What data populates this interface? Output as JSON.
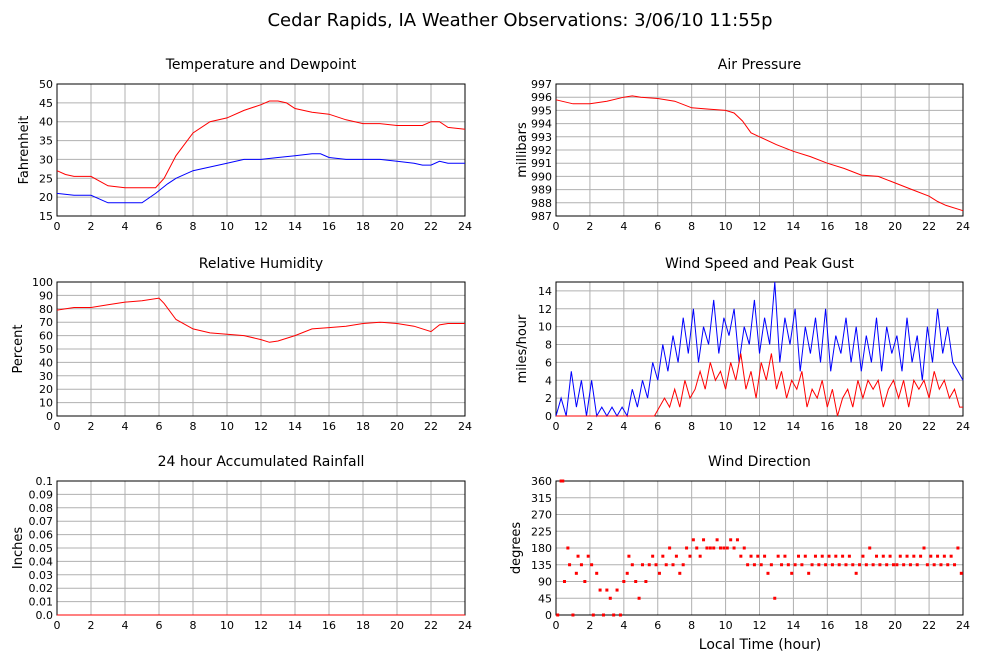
{
  "page_title": "Cedar Rapids, IA Weather Observations: 3/06/10 11:55p",
  "global_xlabel": "Local Time (hour)",
  "colors": {
    "red": "#ff0000",
    "blue": "#0000ff",
    "grid": "#b0b0b0"
  },
  "chart_data": [
    {
      "type": "line",
      "title": "Temperature and Dewpoint",
      "xlabel": "",
      "ylabel": "Fahrenheit",
      "xlim": [
        0,
        24
      ],
      "ylim": [
        15,
        50
      ],
      "xticks": [
        0,
        2,
        4,
        6,
        8,
        10,
        12,
        14,
        16,
        18,
        20,
        22,
        24
      ],
      "yticks": [
        15,
        20,
        25,
        30,
        35,
        40,
        45,
        50
      ],
      "grid": true,
      "series": [
        {
          "color": "#ff0000",
          "x": [
            0,
            0.5,
            1,
            2,
            3,
            4,
            5,
            5.8,
            6.3,
            7,
            8,
            9,
            10,
            11,
            12,
            12.5,
            13,
            13.5,
            14,
            15,
            16,
            17,
            18,
            19,
            20,
            21,
            21.5,
            22,
            22.5,
            23,
            24
          ],
          "values": [
            27,
            26,
            25.5,
            25.5,
            23,
            22.5,
            22.5,
            22.5,
            25,
            31,
            37,
            40,
            41,
            43,
            44.5,
            45.5,
            45.5,
            45,
            43.5,
            42.5,
            42,
            40.5,
            39.5,
            39.5,
            39,
            39,
            39,
            40,
            40,
            38.5,
            38
          ]
        },
        {
          "color": "#0000ff",
          "x": [
            0,
            1,
            2,
            3,
            4,
            5,
            5.8,
            6.5,
            7,
            8,
            9,
            10,
            11,
            12,
            13,
            14,
            15,
            15.5,
            16,
            17,
            18,
            19,
            20,
            21,
            21.5,
            22,
            22.5,
            23,
            24
          ],
          "values": [
            21,
            20.5,
            20.5,
            18.5,
            18.5,
            18.5,
            21,
            23.5,
            25,
            27,
            28,
            29,
            30,
            30,
            30.5,
            31,
            31.5,
            31.5,
            30.5,
            30,
            30,
            30,
            29.5,
            29,
            28.5,
            28.5,
            29.5,
            29,
            29
          ]
        }
      ]
    },
    {
      "type": "line",
      "title": "Air Pressure",
      "xlabel": "",
      "ylabel": "millibars",
      "xlim": [
        0,
        24
      ],
      "ylim": [
        987,
        997
      ],
      "xticks": [
        0,
        2,
        4,
        6,
        8,
        10,
        12,
        14,
        16,
        18,
        20,
        22,
        24
      ],
      "yticks": [
        987,
        988,
        989,
        990,
        991,
        992,
        993,
        994,
        995,
        996,
        997
      ],
      "grid": true,
      "series": [
        {
          "color": "#ff0000",
          "x": [
            0,
            1,
            2,
            3,
            4,
            4.5,
            5,
            6,
            7,
            8,
            9,
            10,
            10.5,
            11,
            11.5,
            12,
            13,
            14,
            15,
            16,
            17,
            18,
            19,
            20,
            21,
            22,
            22.5,
            23,
            24
          ],
          "values": [
            995.8,
            995.5,
            995.5,
            995.7,
            996,
            996.1,
            996,
            995.9,
            995.7,
            995.2,
            995.1,
            995,
            994.8,
            994.2,
            993.3,
            993,
            992.4,
            991.9,
            991.5,
            991,
            990.6,
            990.1,
            990,
            989.5,
            989,
            988.5,
            988.1,
            987.8,
            987.4
          ]
        }
      ]
    },
    {
      "type": "line",
      "title": "Relative Humidity",
      "xlabel": "",
      "ylabel": "Percent",
      "xlim": [
        0,
        24
      ],
      "ylim": [
        0,
        100
      ],
      "xticks": [
        0,
        2,
        4,
        6,
        8,
        10,
        12,
        14,
        16,
        18,
        20,
        22,
        24
      ],
      "yticks": [
        0,
        10,
        20,
        30,
        40,
        50,
        60,
        70,
        80,
        90,
        100
      ],
      "grid": true,
      "series": [
        {
          "color": "#ff0000",
          "x": [
            0,
            1,
            2,
            3,
            4,
            5,
            6,
            6.3,
            7,
            8,
            9,
            10,
            11,
            12,
            12.5,
            13,
            14,
            15,
            16,
            17,
            18,
            19,
            20,
            21,
            22,
            22.5,
            23,
            24
          ],
          "values": [
            79,
            81,
            81,
            83,
            85,
            86,
            88,
            84,
            72,
            65,
            62,
            61,
            60,
            57,
            55,
            56,
            60,
            65,
            66,
            67,
            69,
            70,
            69,
            67,
            63,
            68,
            69,
            69
          ]
        }
      ]
    },
    {
      "type": "line",
      "title": "Wind Speed and Peak Gust",
      "xlabel": "",
      "ylabel": "miles/hour",
      "xlim": [
        0,
        24
      ],
      "ylim": [
        0,
        15
      ],
      "xticks": [
        0,
        2,
        4,
        6,
        8,
        10,
        12,
        14,
        16,
        18,
        20,
        22,
        24
      ],
      "yticks": [
        0,
        2,
        4,
        6,
        8,
        10,
        12,
        14
      ],
      "grid": true,
      "series": [
        {
          "color": "#0000ff",
          "x": [
            0,
            0.3,
            0.6,
            0.9,
            1.2,
            1.5,
            1.8,
            2.1,
            2.4,
            2.7,
            3.0,
            3.3,
            3.6,
            3.9,
            4.2,
            4.5,
            4.8,
            5.1,
            5.4,
            5.7,
            6.0,
            6.3,
            6.6,
            6.9,
            7.2,
            7.5,
            7.8,
            8.1,
            8.4,
            8.7,
            9.0,
            9.3,
            9.6,
            9.9,
            10.2,
            10.5,
            10.8,
            11.1,
            11.4,
            11.7,
            12.0,
            12.3,
            12.6,
            12.9,
            13.2,
            13.5,
            13.8,
            14.1,
            14.4,
            14.7,
            15.0,
            15.3,
            15.6,
            15.9,
            16.2,
            16.5,
            16.8,
            17.1,
            17.4,
            17.7,
            18.0,
            18.3,
            18.6,
            18.9,
            19.2,
            19.5,
            19.8,
            20.1,
            20.4,
            20.7,
            21.0,
            21.3,
            21.6,
            21.9,
            22.2,
            22.5,
            22.8,
            23.1,
            23.4,
            23.7,
            24.0
          ],
          "values": [
            0,
            2,
            0,
            5,
            1,
            4,
            0,
            4,
            0,
            1,
            0,
            1,
            0,
            1,
            0,
            3,
            1,
            4,
            2,
            6,
            4,
            8,
            5,
            9,
            6,
            11,
            7,
            12,
            6,
            10,
            8,
            13,
            7,
            11,
            9,
            12,
            6,
            10,
            8,
            13,
            7,
            11,
            8,
            15,
            6,
            11,
            8,
            12,
            5,
            10,
            7,
            11,
            6,
            12,
            5,
            9,
            7,
            11,
            6,
            10,
            5,
            9,
            6,
            11,
            5,
            10,
            7,
            9,
            5,
            11,
            6,
            9,
            4,
            10,
            6,
            12,
            7,
            10,
            6,
            5,
            4
          ]
        },
        {
          "color": "#ff0000",
          "x": [
            0,
            0.5,
            1,
            1.5,
            2,
            2.5,
            3,
            3.5,
            4,
            4.5,
            5,
            5.5,
            5.8,
            6.1,
            6.4,
            6.7,
            7.0,
            7.3,
            7.6,
            7.9,
            8.2,
            8.5,
            8.8,
            9.1,
            9.4,
            9.7,
            10.0,
            10.3,
            10.6,
            10.9,
            11.2,
            11.5,
            11.8,
            12.1,
            12.4,
            12.7,
            13.0,
            13.3,
            13.6,
            13.9,
            14.2,
            14.5,
            14.8,
            15.1,
            15.4,
            15.7,
            16.0,
            16.3,
            16.6,
            16.9,
            17.2,
            17.5,
            17.8,
            18.1,
            18.4,
            18.7,
            19.0,
            19.3,
            19.6,
            19.9,
            20.2,
            20.5,
            20.8,
            21.1,
            21.4,
            21.7,
            22.0,
            22.3,
            22.6,
            22.9,
            23.2,
            23.5,
            23.8,
            24.0
          ],
          "values": [
            0,
            0,
            0,
            0,
            0,
            0,
            0,
            0,
            0,
            0,
            0,
            0,
            0,
            1,
            2,
            1,
            3,
            1,
            4,
            2,
            3,
            5,
            3,
            6,
            4,
            5,
            3,
            6,
            4,
            7,
            3,
            5,
            2,
            6,
            4,
            7,
            3,
            5,
            2,
            4,
            3,
            5,
            1,
            3,
            2,
            4,
            1,
            3,
            0,
            2,
            3,
            1,
            4,
            2,
            4,
            3,
            4,
            1,
            3,
            4,
            2,
            4,
            1,
            4,
            3,
            4,
            2,
            5,
            3,
            4,
            2,
            3,
            1,
            1
          ]
        }
      ]
    },
    {
      "type": "line",
      "title": "24 hour Accumulated Rainfall",
      "xlabel": "",
      "ylabel": "Inches",
      "xlim": [
        0,
        24
      ],
      "ylim": [
        0,
        0.1
      ],
      "xticks": [
        0,
        2,
        4,
        6,
        8,
        10,
        12,
        14,
        16,
        18,
        20,
        22,
        24
      ],
      "yticks": [
        0.0,
        0.01,
        0.02,
        0.03,
        0.04,
        0.05,
        0.06,
        0.07,
        0.08,
        0.09,
        0.1
      ],
      "ytick_labels": [
        "0.0",
        "0.01",
        "0.02",
        "0.03",
        "0.04",
        "0.05",
        "0.06",
        "0.07",
        "0.08",
        "0.09",
        "0.1"
      ],
      "grid": true,
      "series": [
        {
          "color": "#ff0000",
          "x": [
            0,
            24
          ],
          "values": [
            0,
            0
          ]
        }
      ]
    },
    {
      "type": "scatter",
      "title": "Wind Direction",
      "xlabel": "Local Time (hour)",
      "ylabel": "degrees",
      "xlim": [
        0,
        24
      ],
      "ylim": [
        0,
        360
      ],
      "xticks": [
        0,
        2,
        4,
        6,
        8,
        10,
        12,
        14,
        16,
        18,
        20,
        22,
        24
      ],
      "yticks": [
        0,
        45,
        90,
        135,
        180,
        225,
        270,
        315,
        360
      ],
      "grid": true,
      "series": [
        {
          "color": "#ff0000",
          "x": [
            0.1,
            0.3,
            0.4,
            0.5,
            0.7,
            0.8,
            1.0,
            1.2,
            1.3,
            1.5,
            1.7,
            1.9,
            2.1,
            2.2,
            2.4,
            2.6,
            2.8,
            3.0,
            3.2,
            3.4,
            3.6,
            3.8,
            4.0,
            4.2,
            4.3,
            4.5,
            4.7,
            4.9,
            5.1,
            5.3,
            5.5,
            5.7,
            5.9,
            6.1,
            6.3,
            6.5,
            6.7,
            6.9,
            7.1,
            7.3,
            7.5,
            7.7,
            7.9,
            8.1,
            8.3,
            8.5,
            8.7,
            8.9,
            9.1,
            9.3,
            9.5,
            9.7,
            9.9,
            10.1,
            10.3,
            10.5,
            10.7,
            10.9,
            11.1,
            11.3,
            11.5,
            11.7,
            11.9,
            12.1,
            12.3,
            12.5,
            12.7,
            12.9,
            13.1,
            13.3,
            13.5,
            13.7,
            13.9,
            14.1,
            14.3,
            14.5,
            14.7,
            14.9,
            15.1,
            15.3,
            15.5,
            15.7,
            15.9,
            16.1,
            16.3,
            16.5,
            16.7,
            16.9,
            17.1,
            17.3,
            17.5,
            17.7,
            17.9,
            18.1,
            18.3,
            18.5,
            18.7,
            18.9,
            19.1,
            19.3,
            19.5,
            19.7,
            19.9,
            20.1,
            20.3,
            20.5,
            20.7,
            20.9,
            21.1,
            21.3,
            21.5,
            21.7,
            21.9,
            22.1,
            22.3,
            22.5,
            22.7,
            22.9,
            23.1,
            23.3,
            23.5,
            23.7,
            23.9
          ],
          "values": [
            0,
            360,
            360,
            90,
            180,
            135,
            0,
            112,
            158,
            135,
            90,
            158,
            135,
            0,
            112,
            67,
            0,
            67,
            45,
            0,
            67,
            0,
            90,
            112,
            158,
            135,
            90,
            45,
            135,
            90,
            135,
            158,
            135,
            112,
            158,
            135,
            180,
            135,
            158,
            112,
            135,
            180,
            158,
            202,
            180,
            158,
            202,
            180,
            180,
            180,
            202,
            180,
            180,
            180,
            202,
            180,
            202,
            158,
            180,
            135,
            158,
            135,
            158,
            135,
            158,
            112,
            135,
            45,
            158,
            135,
            158,
            135,
            112,
            135,
            158,
            135,
            158,
            112,
            135,
            158,
            135,
            158,
            135,
            158,
            135,
            158,
            135,
            158,
            135,
            158,
            135,
            112,
            135,
            158,
            135,
            180,
            135,
            158,
            135,
            158,
            135,
            158,
            135,
            135,
            158,
            135,
            158,
            135,
            158,
            135,
            158,
            180,
            135,
            158,
            135,
            158,
            135,
            158,
            135,
            158,
            135,
            180,
            112
          ]
        }
      ]
    }
  ]
}
